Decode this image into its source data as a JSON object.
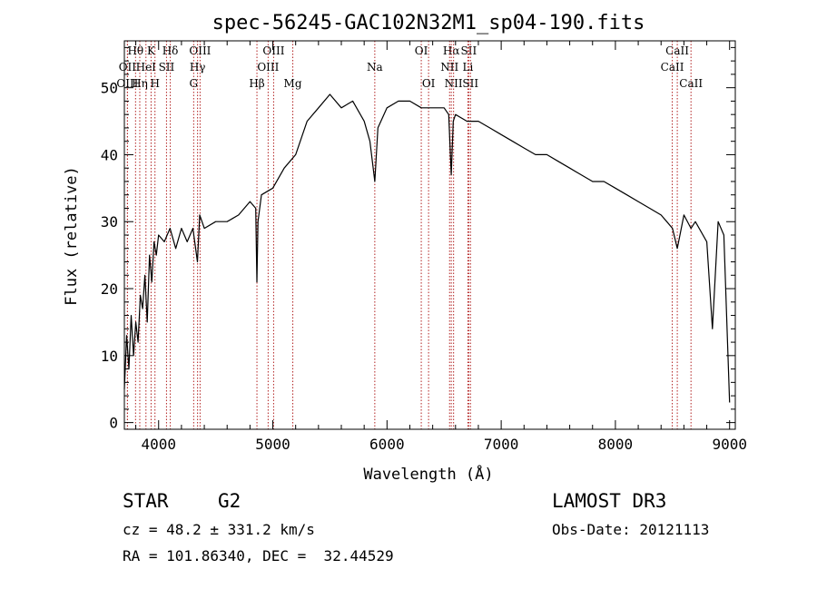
{
  "chart_data": {
    "type": "line",
    "title": "spec-56245-GAC102N32M1_sp04-190.fits",
    "xlabel": "Wavelength (Å)",
    "ylabel": "Flux (relative)",
    "xlim": [
      3700,
      9050
    ],
    "ylim": [
      -1,
      57
    ],
    "xticks": [
      4000,
      5000,
      6000,
      7000,
      8000,
      9000
    ],
    "yticks": [
      0,
      10,
      20,
      30,
      40,
      50
    ],
    "xtick_labels": [
      "4000",
      "5000",
      "6000",
      "7000",
      "8000",
      "9000"
    ],
    "ytick_labels": [
      "0",
      "10",
      "20",
      "30",
      "40",
      "50"
    ],
    "line_color": "#000000",
    "marker_color": "#b22222",
    "series": [
      {
        "x": [
          3700,
          3720,
          3740,
          3760,
          3780,
          3800,
          3820,
          3840,
          3860,
          3880,
          3900,
          3920,
          3940,
          3960,
          3980,
          4000,
          4050,
          4100,
          4150,
          4200,
          4250,
          4300,
          4340,
          4360,
          4400,
          4500,
          4600,
          4700,
          4800,
          4850,
          4861,
          4870,
          4900,
          5000,
          5100,
          5200,
          5300,
          5400,
          5500,
          5600,
          5700,
          5800,
          5850,
          5893,
          5920,
          6000,
          6100,
          6200,
          6300,
          6400,
          6500,
          6540,
          6563,
          6580,
          6600,
          6700,
          6800,
          6900,
          7000,
          7100,
          7200,
          7300,
          7400,
          7500,
          7600,
          7700,
          7800,
          7900,
          8000,
          8100,
          8200,
          8300,
          8400,
          8450,
          8500,
          8542,
          8600,
          8662,
          8700,
          8800,
          8850,
          8900,
          8950,
          9000
        ],
        "y": [
          5,
          13,
          8,
          16,
          10,
          15,
          12,
          19,
          17,
          22,
          15,
          25,
          21,
          27,
          25,
          28,
          27,
          29,
          26,
          29,
          27,
          29,
          24,
          31,
          29,
          30,
          30,
          31,
          33,
          32,
          21,
          30,
          34,
          35,
          38,
          40,
          45,
          47,
          49,
          47,
          48,
          45,
          42,
          36,
          44,
          47,
          48,
          48,
          47,
          47,
          47,
          46,
          37,
          45,
          46,
          45,
          45,
          44,
          43,
          42,
          41,
          40,
          40,
          39,
          38,
          37,
          36,
          36,
          35,
          34,
          33,
          32,
          31,
          30,
          29,
          26,
          31,
          29,
          30,
          27,
          14,
          30,
          28,
          3
        ]
      }
    ],
    "line_markers": [
      {
        "label": "Hθ",
        "x": 3798,
        "row": 0
      },
      {
        "label": "OII",
        "x": 3727,
        "row": 1
      },
      {
        "label": "OIII",
        "x": 3727,
        "row": 2
      },
      {
        "label": "K",
        "x": 3934,
        "row": 0
      },
      {
        "label": "HeI",
        "x": 3889,
        "row": 1
      },
      {
        "label": "Hη",
        "x": 3835,
        "row": 2
      },
      {
        "label": "Hδ",
        "x": 4102,
        "row": 0
      },
      {
        "label": "SII",
        "x": 4069,
        "row": 1
      },
      {
        "label": "H",
        "x": 3968,
        "row": 2
      },
      {
        "label": "OIII",
        "x": 4363,
        "row": 0
      },
      {
        "label": "Hγ",
        "x": 4341,
        "row": 1
      },
      {
        "label": "G",
        "x": 4307,
        "row": 2
      },
      {
        "label": "OIII",
        "x": 5007,
        "row": 0
      },
      {
        "label": "OIII",
        "x": 4959,
        "row": 1
      },
      {
        "label": "Hβ",
        "x": 4861,
        "row": 2
      },
      {
        "label": "Mg",
        "x": 5175,
        "row": 2
      },
      {
        "label": "Na",
        "x": 5893,
        "row": 1
      },
      {
        "label": "OI",
        "x": 6300,
        "row": 0
      },
      {
        "label": "OI",
        "x": 6364,
        "row": 2
      },
      {
        "label": "Hα",
        "x": 6563,
        "row": 0
      },
      {
        "label": "SII",
        "x": 6716,
        "row": 0
      },
      {
        "label": "NII",
        "x": 6548,
        "row": 1
      },
      {
        "label": "Li",
        "x": 6708,
        "row": 1
      },
      {
        "label": "NII",
        "x": 6583,
        "row": 2
      },
      {
        "label": "SII",
        "x": 6731,
        "row": 2
      },
      {
        "label": "CaII",
        "x": 8542,
        "row": 0
      },
      {
        "label": "CaII",
        "x": 8498,
        "row": 1
      },
      {
        "label": "CaII",
        "x": 8662,
        "row": 2
      }
    ]
  },
  "info": {
    "class_label": "STAR",
    "subclass_label": "G2",
    "survey": "LAMOST DR3",
    "cz": "cz = 48.2 ± 331.2 km/s",
    "obs_date": "Obs-Date: 20121113",
    "radec": "RA = 101.86340, DEC =  32.44529"
  }
}
